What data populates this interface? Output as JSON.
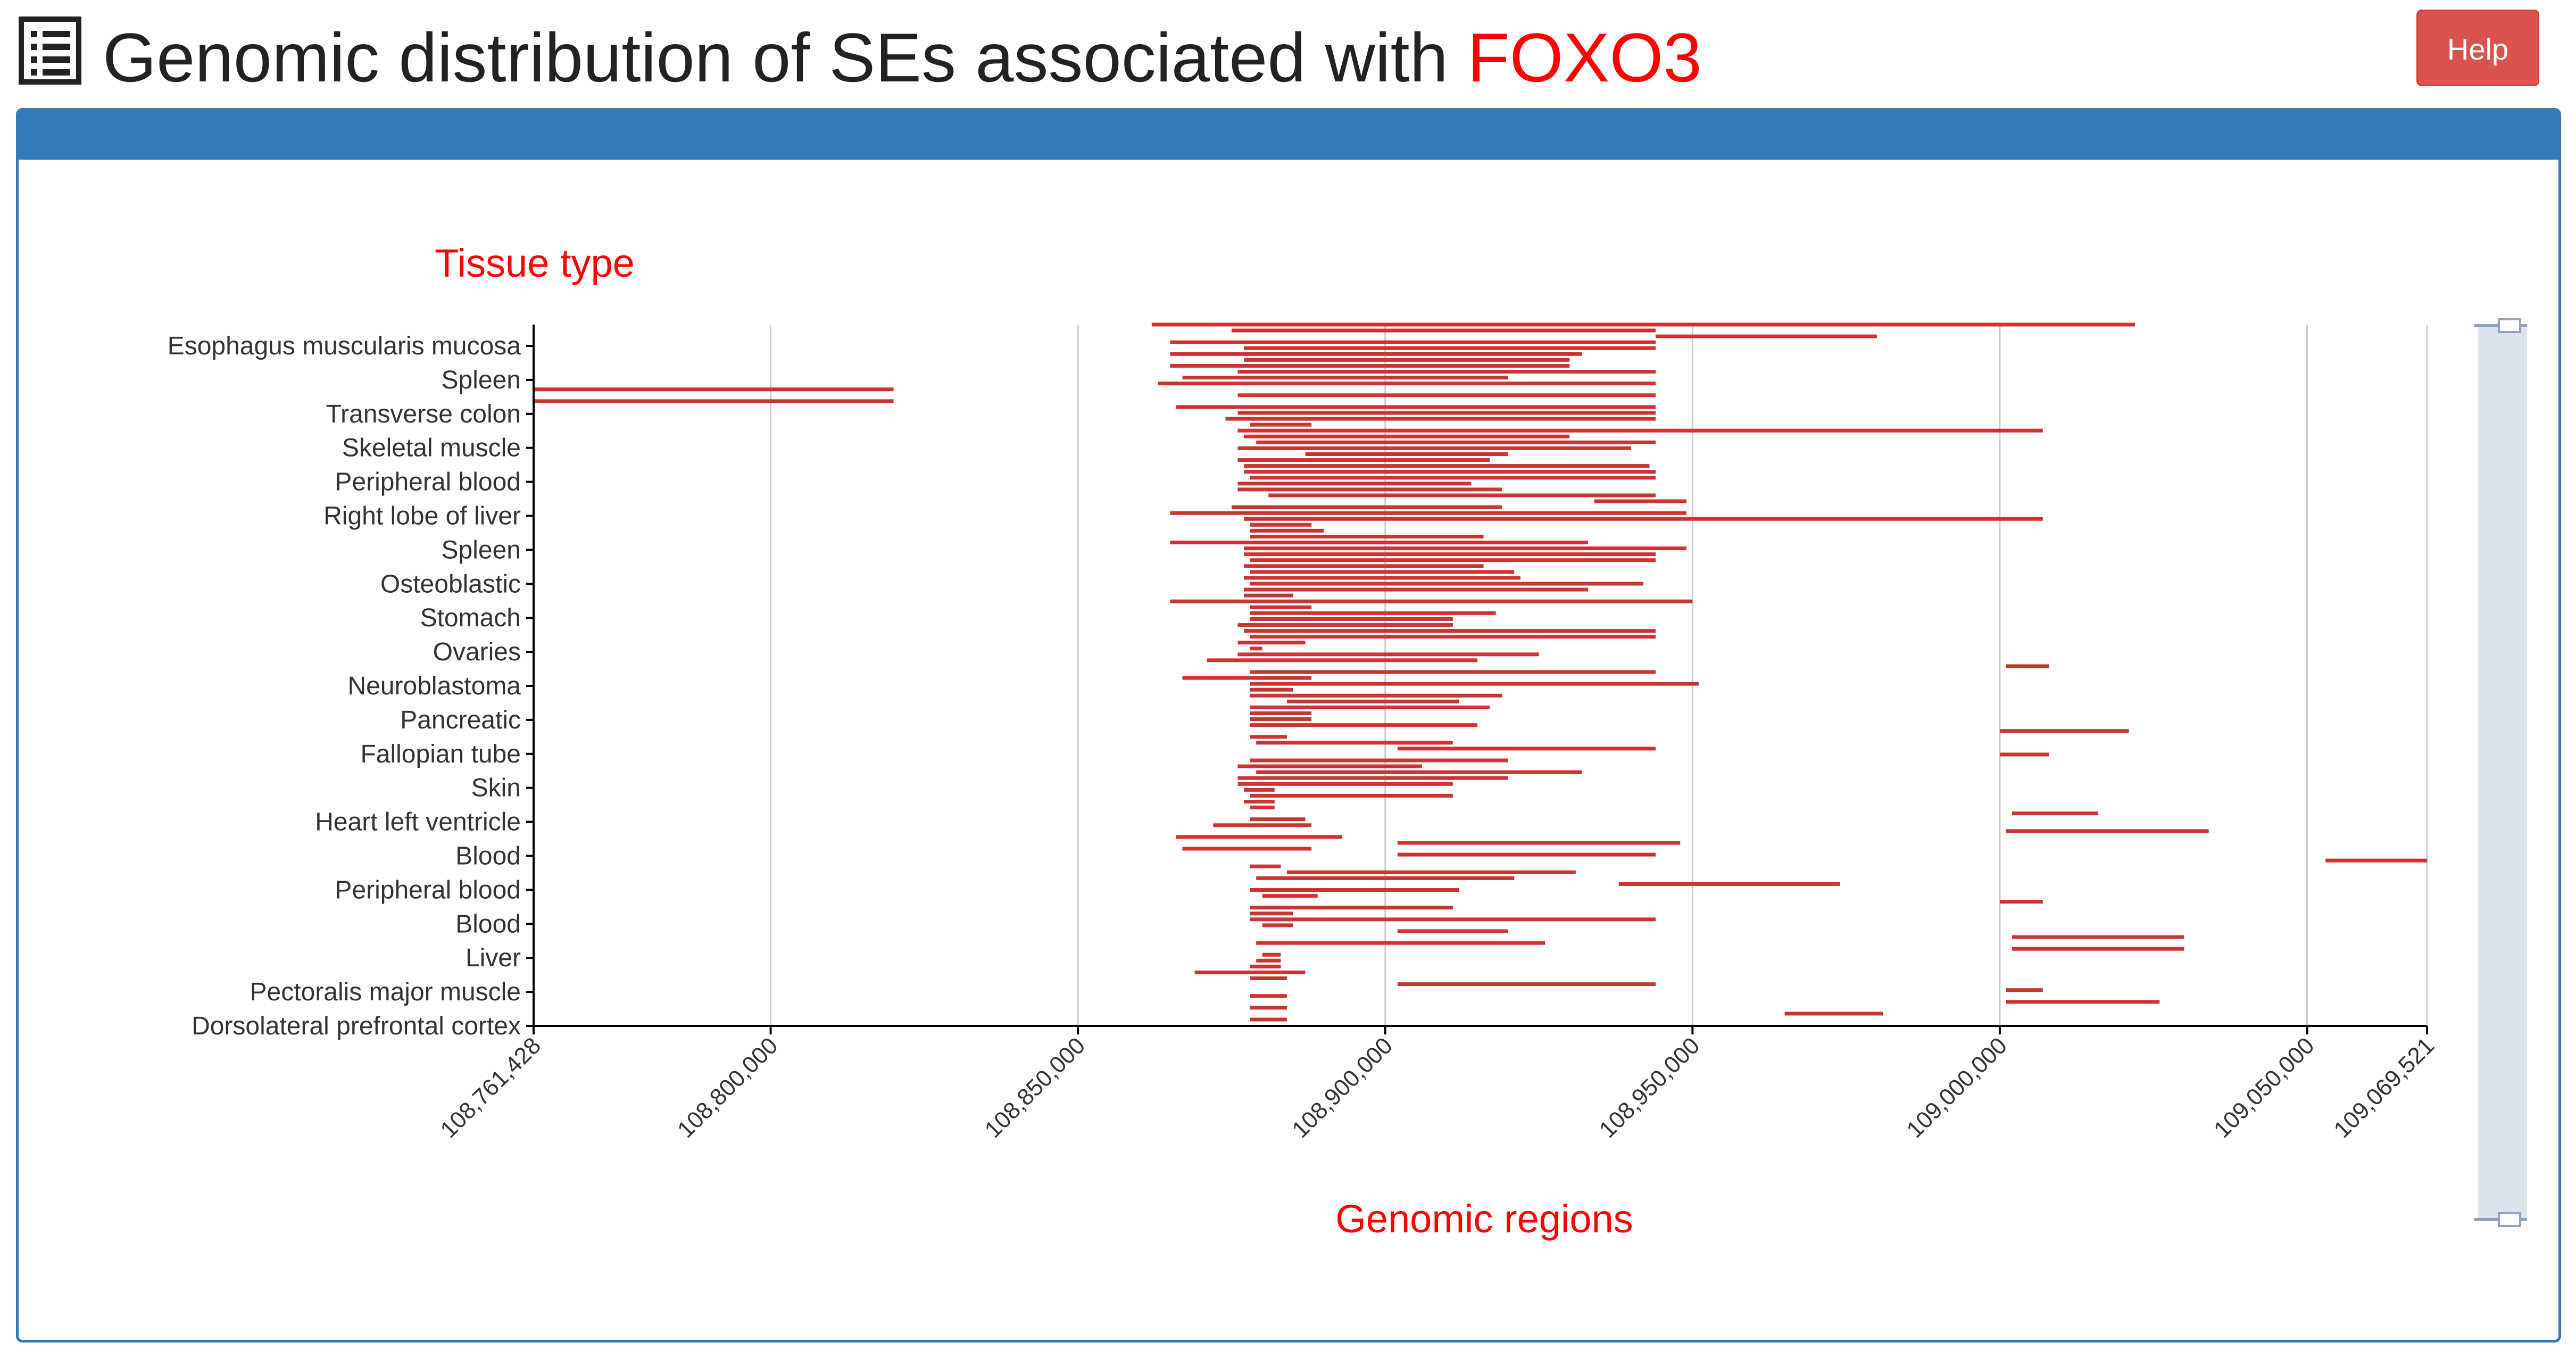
{
  "header": {
    "title_prefix": "Genomic distribution of SEs associated with",
    "gene": "FOXO3",
    "title_icon": "list-icon",
    "help_label": "Help"
  },
  "colors": {
    "accent": "#337ab7",
    "bar": "#cc3333",
    "label_red": "#ff0000",
    "help_button": "#d9534f",
    "scrollbar": "#dde3ec"
  },
  "chart_data": {
    "type": "bar",
    "subtype": "horizontal-interval",
    "ylabel": "Tissue type",
    "xlabel": "Genomic regions",
    "xlim": [
      108761428,
      109069521
    ],
    "x_ticks": [
      {
        "value": 108761428,
        "label": "108,761,428"
      },
      {
        "value": 108800000,
        "label": "108,800,000"
      },
      {
        "value": 108850000,
        "label": "108,850,000"
      },
      {
        "value": 108900000,
        "label": "108,900,000"
      },
      {
        "value": 108950000,
        "label": "108,950,000"
      },
      {
        "value": 109000000,
        "label": "109,000,000"
      },
      {
        "value": 109050000,
        "label": "109,050,000"
      },
      {
        "value": 109069521,
        "label": "109,069,521"
      }
    ],
    "grid": "vertical",
    "tissue_labels": [
      "Esophagus muscularis mucosa",
      "Spleen",
      "Transverse colon",
      "Skeletal muscle",
      "Peripheral blood",
      "Right lobe of liver",
      "Spleen",
      "Osteoblastic",
      "Stomach",
      "Ovaries",
      "Neuroblastoma",
      "Pancreatic",
      "Fallopian tube",
      "Skin",
      "Heart left ventricle",
      "Blood",
      "Peripheral blood",
      "Blood",
      "Liver",
      "Pectoralis major muscle",
      "Dorsolateral prefrontal cortex"
    ],
    "intervals": [
      [
        108862000,
        109022000
      ],
      [
        108875000,
        108944000
      ],
      [
        108944000,
        108980000
      ],
      [
        108865000,
        108944000
      ],
      [
        108877000,
        108944000
      ],
      [
        108865000,
        108932000
      ],
      [
        108877000,
        108930000
      ],
      [
        108865000,
        108930000
      ],
      [
        108876000,
        108944000
      ],
      [
        108867000,
        108920000
      ],
      [
        108863000,
        108944000
      ],
      [
        108761428,
        108820000
      ],
      [
        108876000,
        108944000
      ],
      [
        108761428,
        108820000
      ],
      [
        108866000,
        108944000
      ],
      [
        108876000,
        108944000
      ],
      [
        108874000,
        108944000
      ],
      [
        108878000,
        108888000
      ],
      [
        108876000,
        109007000
      ],
      [
        108877000,
        108930000
      ],
      [
        108879000,
        108944000
      ],
      [
        108876000,
        108940000
      ],
      [
        108887000,
        108920000
      ],
      [
        108876000,
        108917000
      ],
      [
        108877000,
        108943000
      ],
      [
        108877000,
        108944000
      ],
      [
        108878000,
        108944000
      ],
      [
        108876000,
        108914000
      ],
      [
        108876000,
        108919000
      ],
      [
        108881000,
        108944000
      ],
      [
        108934000,
        108949000
      ],
      [
        108875000,
        108919000
      ],
      [
        108865000,
        108949000
      ],
      [
        108877000,
        109007000
      ],
      [
        108878000,
        108888000
      ],
      [
        108878000,
        108890000
      ],
      [
        108878000,
        108916000
      ],
      [
        108865000,
        108933000
      ],
      [
        108877000,
        108949000
      ],
      [
        108877000,
        108944000
      ],
      [
        108878000,
        108944000
      ],
      [
        108877000,
        108916000
      ],
      [
        108878000,
        108921000
      ],
      [
        108877000,
        108922000
      ],
      [
        108878000,
        108942000
      ],
      [
        108877000,
        108933000
      ],
      [
        108877000,
        108885000
      ],
      [
        108865000,
        108950000
      ],
      [
        108878000,
        108888000
      ],
      [
        108878000,
        108918000
      ],
      [
        108878000,
        108911000
      ],
      [
        108876000,
        108911000
      ],
      [
        108877000,
        108944000
      ],
      [
        108878000,
        108944000
      ],
      [
        108876000,
        108887000
      ],
      [
        108878000,
        108880000
      ],
      [
        108876000,
        108925000
      ],
      [
        108871000,
        108915000
      ],
      [
        109001000,
        109008000
      ],
      [
        108878000,
        108944000
      ],
      [
        108867000,
        108888000
      ],
      [
        108878000,
        108951000
      ],
      [
        108878000,
        108885000
      ],
      [
        108878000,
        108919000
      ],
      [
        108884000,
        108912000
      ],
      [
        108878000,
        108917000
      ],
      [
        108878000,
        108888000
      ],
      [
        108878000,
        108888000
      ],
      [
        108878000,
        108915000
      ],
      [
        109000000,
        109021000
      ],
      [
        108878000,
        108884000
      ],
      [
        108879000,
        108911000
      ],
      [
        108902000,
        108944000
      ],
      [
        109000000,
        109008000
      ],
      [
        108878000,
        108920000
      ],
      [
        108876000,
        108906000
      ],
      [
        108879000,
        108932000
      ],
      [
        108876000,
        108920000
      ],
      [
        108876000,
        108911000
      ],
      [
        108877000,
        108882000
      ],
      [
        108878000,
        108911000
      ],
      [
        108877000,
        108882000
      ],
      [
        108878000,
        108882000
      ],
      [
        109002000,
        109016000
      ],
      [
        108878000,
        108887000
      ],
      [
        108872000,
        108888000
      ],
      [
        109001000,
        109034000
      ],
      [
        108866000,
        108893000
      ],
      [
        108902000,
        108948000
      ],
      [
        108867000,
        108888000
      ],
      [
        108902000,
        108944000
      ],
      [
        109053000,
        109069521
      ],
      [
        108878000,
        108883000
      ],
      [
        108884000,
        108931000
      ],
      [
        108879000,
        108921000
      ],
      [
        108938000,
        108974000
      ],
      [
        108878000,
        108912000
      ],
      [
        108880000,
        108889000
      ],
      [
        109000000,
        109007000
      ],
      [
        108878000,
        108911000
      ],
      [
        108878000,
        108885000
      ],
      [
        108878000,
        108944000
      ],
      [
        108880000,
        108885000
      ],
      [
        108902000,
        108920000
      ],
      [
        109002000,
        109030000
      ],
      [
        108879000,
        108926000
      ],
      [
        109002000,
        109030000
      ],
      [
        108880000,
        108883000
      ],
      [
        108879000,
        108883000
      ],
      [
        108878000,
        108883000
      ],
      [
        108869000,
        108887000
      ],
      [
        108878000,
        108884000
      ],
      [
        108902000,
        108944000
      ],
      [
        109001000,
        109007000
      ],
      [
        108878000,
        108884000
      ],
      [
        109001000,
        109026000
      ],
      [
        108878000,
        108884000
      ],
      [
        108965000,
        108981000
      ],
      [
        108878000,
        108884000
      ]
    ]
  }
}
